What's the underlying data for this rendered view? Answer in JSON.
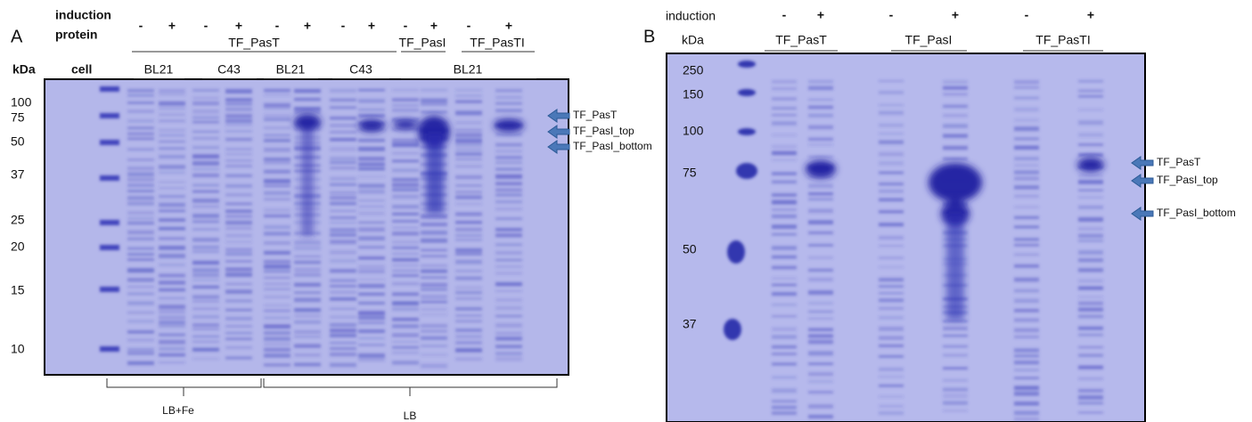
{
  "panel_a": {
    "label": "A",
    "row_labels": {
      "induction": "induction",
      "protein": "protein",
      "kda": "kDa",
      "cell": "cell"
    },
    "induction": [
      "-",
      "+",
      "-",
      "+",
      "-",
      "+",
      "-",
      "+",
      "-",
      "+",
      "-",
      "+"
    ],
    "proteins": [
      "TF_PasT",
      "TF_PasI",
      "TF_PasTI"
    ],
    "cells": [
      "BL21",
      "C43",
      "BL21",
      "C43",
      "BL21"
    ],
    "markers": [
      100,
      75,
      50,
      37,
      25,
      20,
      15,
      10
    ],
    "arrows": [
      "TF_PasT",
      "TF_PasI_top",
      "TF_PasI_bottom"
    ],
    "media": [
      "LB+Fe",
      "LB"
    ]
  },
  "panel_b": {
    "label": "B",
    "row_labels": {
      "induction": "induction",
      "kda": "kDa"
    },
    "induction": [
      "-",
      "+",
      "-",
      "+",
      "-",
      "+"
    ],
    "proteins": [
      "TF_PasT",
      "TF_PasI",
      "TF_PasTI"
    ],
    "markers": [
      250,
      150,
      100,
      75,
      50,
      37
    ],
    "arrows": [
      "TF_PasT",
      "TF_PasI_top",
      "TF_PasI_bottom"
    ]
  }
}
